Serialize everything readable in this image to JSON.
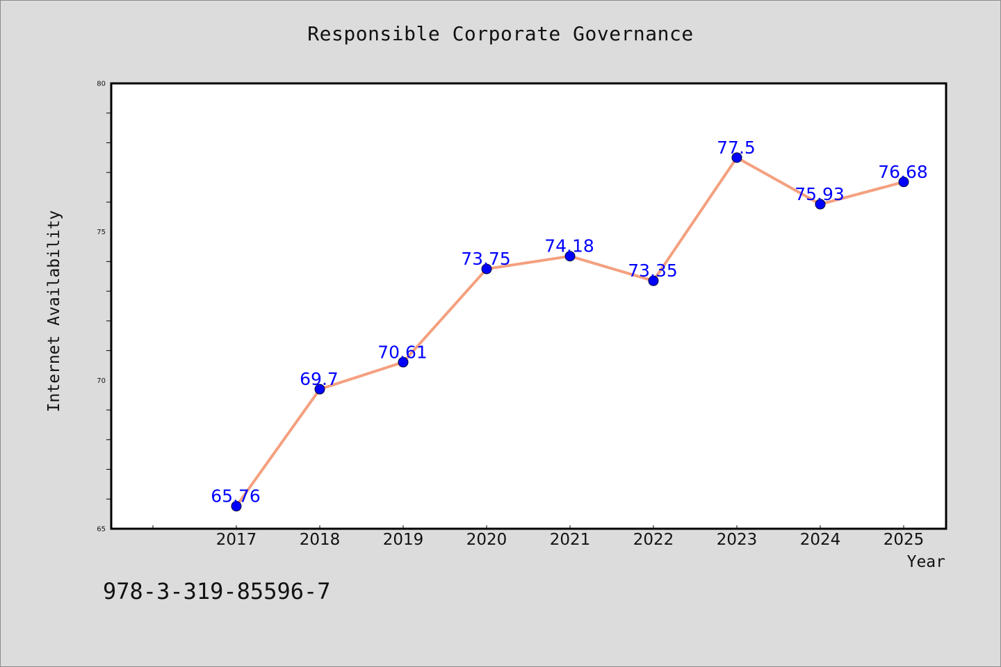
{
  "chart_data": {
    "type": "line",
    "title": "Responsible Corporate Governance",
    "xlabel": "Year",
    "ylabel": "Internet Availability",
    "x": [
      "2017",
      "2018",
      "2019",
      "2020",
      "2021",
      "2022",
      "2023",
      "2024",
      "2025"
    ],
    "series": [
      {
        "values": [
          65.76,
          69.7,
          70.61,
          73.75,
          74.18,
          73.35,
          77.5,
          75.93,
          76.68
        ],
        "data_labels": [
          "65.76",
          "69.7",
          "70.61",
          "73.75",
          "74.18",
          "73.35",
          "77.5",
          "75.93",
          "76.68"
        ]
      }
    ],
    "ylim": [
      65,
      80
    ],
    "yticks": [
      "65",
      "70",
      "75",
      "80"
    ],
    "grid": false,
    "colors": {
      "line": "#f4a07f",
      "marker": "#0000ff",
      "data_label": "#0000ff",
      "plot_background": "#ffffff",
      "figure_background": "#dcdcdc"
    }
  },
  "annotation": "978-3-319-85596-7"
}
